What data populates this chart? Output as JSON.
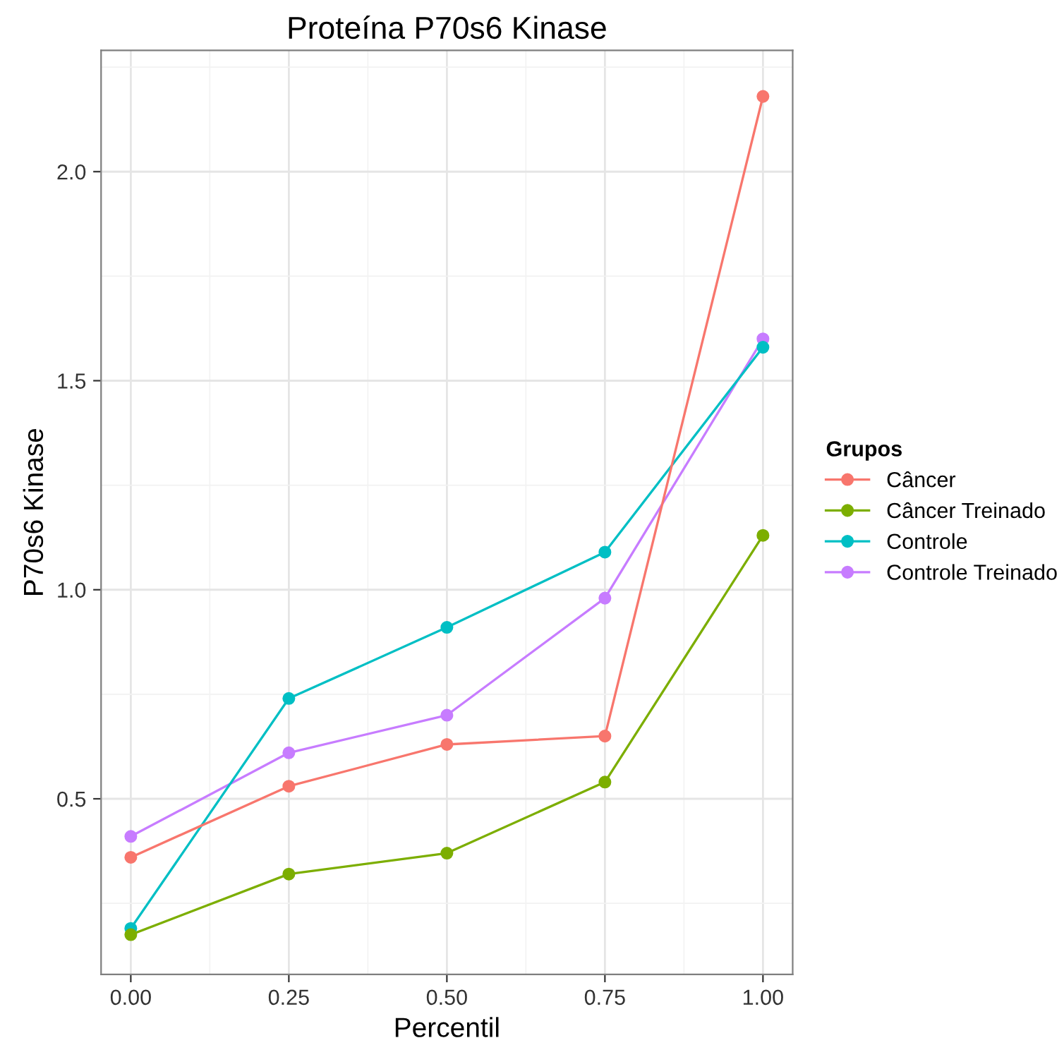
{
  "chart_data": {
    "type": "line",
    "title": "Proteína P70s6 Kinase",
    "xlabel": "Percentil",
    "ylabel": "P70s6 Kinase",
    "legend_title": "Grupos",
    "x": [
      0,
      0.25,
      0.5,
      0.75,
      1.0
    ],
    "series": [
      {
        "name": "Câncer",
        "color": "#f8766d",
        "values": [
          0.36,
          0.53,
          0.63,
          0.65,
          2.18
        ]
      },
      {
        "name": "Câncer Treinado",
        "color": "#7cae00",
        "values": [
          0.175,
          0.32,
          0.37,
          0.54,
          1.13
        ]
      },
      {
        "name": "Controle",
        "color": "#00bfc4",
        "values": [
          0.19,
          0.74,
          0.91,
          1.09,
          1.58
        ]
      },
      {
        "name": "Controle Treinado",
        "color": "#c77cff",
        "values": [
          0.41,
          0.61,
          0.7,
          0.98,
          1.6
        ]
      }
    ],
    "xlim": [
      -0.047,
      1.047
    ],
    "ylim": [
      0.08,
      2.29
    ],
    "xticks": [
      {
        "value": 0,
        "label": "0.00"
      },
      {
        "value": 0.25,
        "label": "0.25"
      },
      {
        "value": 0.5,
        "label": "0.50"
      },
      {
        "value": 0.75,
        "label": "0.75"
      },
      {
        "value": 1.0,
        "label": "1.00"
      }
    ],
    "yticks": [
      0.5,
      {
        "value": 1.0,
        "label": "1.0"
      },
      1.5,
      {
        "value": 2.0,
        "label": "2.0"
      }
    ],
    "grid": true,
    "legend": "right",
    "marker": "circle",
    "line_style": "solid"
  }
}
